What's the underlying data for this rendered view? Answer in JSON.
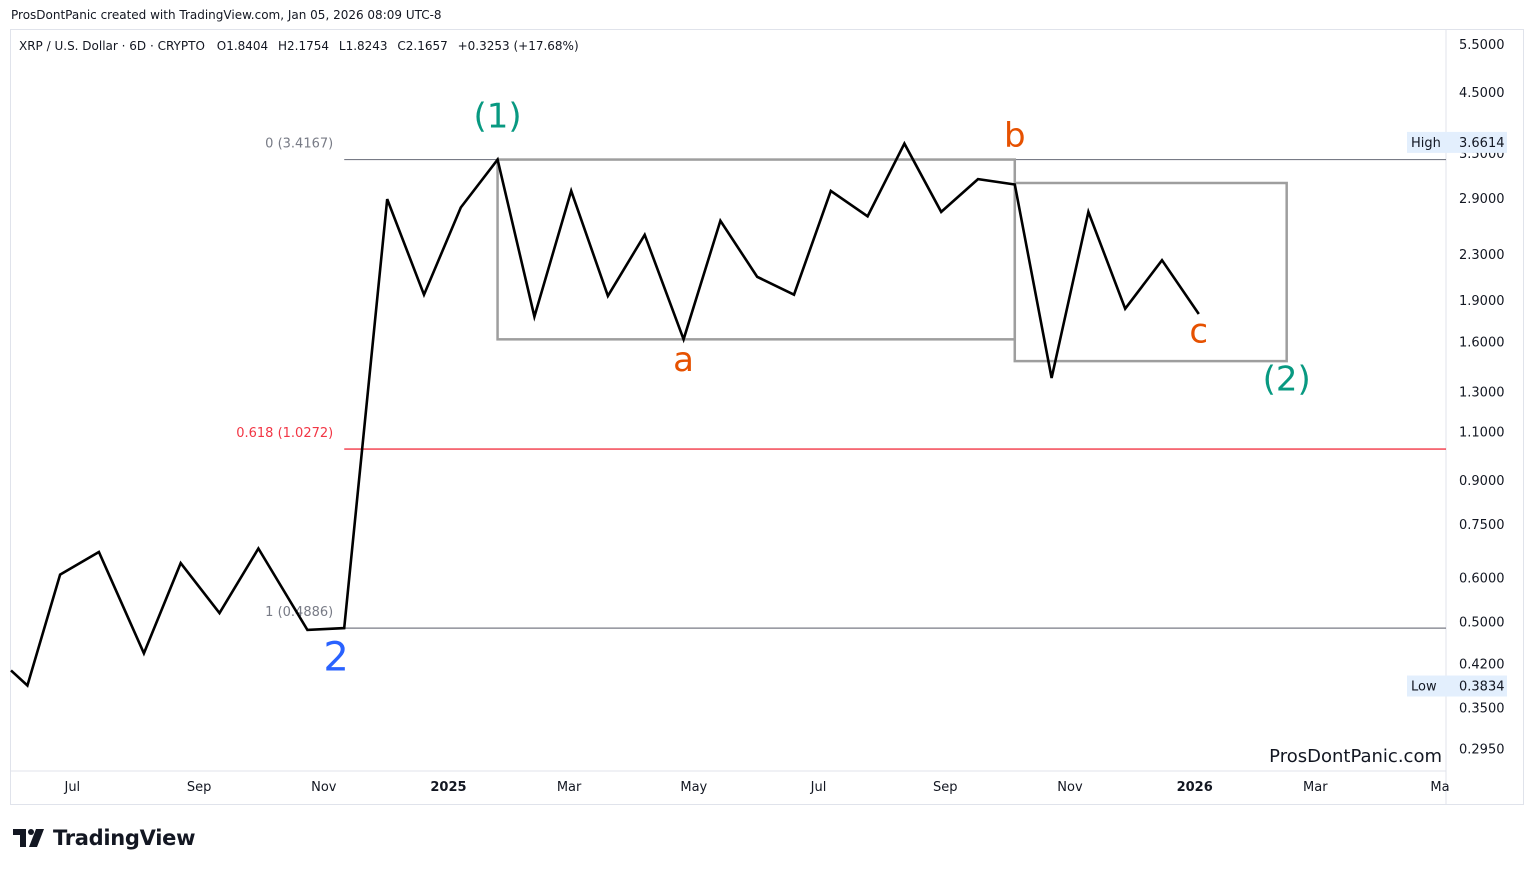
{
  "header": {
    "credit": "ProsDontPanic created with TradingView.com, Jan 05, 2026 08:09 UTC-8"
  },
  "legend": {
    "symbol": "XRP / U.S. Dollar · 6D · CRYPTO",
    "open_label": "O",
    "open": "1.8404",
    "high_label": "H",
    "high": "2.1754",
    "low_label": "L",
    "low": "1.8243",
    "close_label": "C",
    "close": "2.1657",
    "change": "+0.3253 (+17.68%)"
  },
  "watermark": "ProsDontPanic.com",
  "branding": {
    "logo_text": "TradingView"
  },
  "colors": {
    "price_line": "#000000",
    "fib_gray": "#787b86",
    "fib_red": "#f23645",
    "wave_green": "#089981",
    "wave_orange": "#e65100",
    "wave_blue": "#2962ff",
    "box_gray": "#9e9e9e"
  },
  "chart_data": {
    "type": "line",
    "title": "XRP / U.S. Dollar · 6D · CRYPTO",
    "y_scale": "log",
    "ylim": [
      0.27,
      5.85
    ],
    "y_ticks": [
      "5.5000",
      "4.5000",
      "3.5000",
      "2.9000",
      "2.3000",
      "1.9000",
      "1.6000",
      "1.3000",
      "1.1000",
      "0.9000",
      "0.7500",
      "0.6000",
      "0.5000",
      "0.4200",
      "0.3500",
      "0.2950"
    ],
    "x_ticks": [
      {
        "label": "Jul",
        "date": "2024-07-01",
        "bold": false
      },
      {
        "label": "Sep",
        "date": "2024-09-01",
        "bold": false
      },
      {
        "label": "Nov",
        "date": "2024-11-01",
        "bold": false
      },
      {
        "label": "2025",
        "date": "2025-01-01",
        "bold": true
      },
      {
        "label": "Mar",
        "date": "2025-03-01",
        "bold": false
      },
      {
        "label": "May",
        "date": "2025-05-01",
        "bold": false
      },
      {
        "label": "Jul",
        "date": "2025-07-01",
        "bold": false
      },
      {
        "label": "Sep",
        "date": "2025-09-01",
        "bold": false
      },
      {
        "label": "Nov",
        "date": "2025-11-01",
        "bold": false
      },
      {
        "label": "2026",
        "date": "2026-01-01",
        "bold": true
      },
      {
        "label": "Mar",
        "date": "2026-03-01",
        "bold": false
      },
      {
        "label": "Ma",
        "date": "2026-05-01",
        "bold": false
      }
    ],
    "series": [
      {
        "points": [
          {
            "x": "2024-06-01",
            "y": 0.41
          },
          {
            "x": "2024-06-09",
            "y": 0.385
          },
          {
            "x": "2024-06-25",
            "y": 0.61
          },
          {
            "x": "2024-07-14",
            "y": 0.67
          },
          {
            "x": "2024-08-05",
            "y": 0.44
          },
          {
            "x": "2024-08-23",
            "y": 0.64
          },
          {
            "x": "2024-09-11",
            "y": 0.52
          },
          {
            "x": "2024-09-30",
            "y": 0.68
          },
          {
            "x": "2024-10-24",
            "y": 0.485
          },
          {
            "x": "2024-11-11",
            "y": 0.4886
          },
          {
            "x": "2024-12-02",
            "y": 2.9
          },
          {
            "x": "2024-12-20",
            "y": 1.95
          },
          {
            "x": "2025-01-07",
            "y": 2.8
          },
          {
            "x": "2025-01-25",
            "y": 3.4167
          },
          {
            "x": "2025-02-12",
            "y": 1.78
          },
          {
            "x": "2025-03-02",
            "y": 3.0
          },
          {
            "x": "2025-03-20",
            "y": 1.94
          },
          {
            "x": "2025-04-07",
            "y": 2.5
          },
          {
            "x": "2025-04-26",
            "y": 1.62
          },
          {
            "x": "2025-05-14",
            "y": 2.65
          },
          {
            "x": "2025-06-01",
            "y": 2.1
          },
          {
            "x": "2025-06-19",
            "y": 1.95
          },
          {
            "x": "2025-07-07",
            "y": 3.0
          },
          {
            "x": "2025-07-25",
            "y": 2.7
          },
          {
            "x": "2025-08-12",
            "y": 3.65
          },
          {
            "x": "2025-08-30",
            "y": 2.75
          },
          {
            "x": "2025-09-17",
            "y": 3.15
          },
          {
            "x": "2025-10-05",
            "y": 3.08
          },
          {
            "x": "2025-10-23",
            "y": 1.38
          },
          {
            "x": "2025-11-10",
            "y": 2.75
          },
          {
            "x": "2025-11-28",
            "y": 1.84
          },
          {
            "x": "2025-12-16",
            "y": 2.25
          },
          {
            "x": "2026-01-03",
            "y": 1.8
          }
        ]
      }
    ],
    "fib_levels": [
      {
        "label": "0 (3.4167)",
        "value": 3.4167,
        "color": "#787b86",
        "x_start": "2024-11-11"
      },
      {
        "label": "0.618 (1.0272)",
        "value": 1.0272,
        "color": "#f23645",
        "x_start": "2024-11-11"
      },
      {
        "label": "1 (0.4886)",
        "value": 0.4886,
        "color": "#787b86",
        "x_start": "2024-11-11"
      }
    ],
    "boxes": [
      {
        "x0": "2025-01-25",
        "x1": "2025-10-05",
        "y0": 1.62,
        "y1": 3.4167
      },
      {
        "x0": "2025-10-05",
        "x1": "2026-02-15",
        "y0": 1.48,
        "y1": 3.1
      }
    ],
    "wave_labels": [
      {
        "text": "(1)",
        "x": "2025-01-25",
        "y": 3.9,
        "color": "#089981"
      },
      {
        "text": "a",
        "x": "2025-04-26",
        "y": 1.42,
        "color": "#e65100"
      },
      {
        "text": "b",
        "x": "2025-10-05",
        "y": 3.6,
        "color": "#e65100"
      },
      {
        "text": "c",
        "x": "2026-01-03",
        "y": 1.6,
        "color": "#e65100"
      },
      {
        "text": "(2)",
        "x": "2026-02-15",
        "y": 1.31,
        "color": "#089981"
      },
      {
        "text": "2",
        "x": "2024-11-07",
        "y": 0.41,
        "color": "#2962ff"
      }
    ],
    "price_tags": [
      {
        "label": "High",
        "value": "3.6614",
        "y": 3.6614
      },
      {
        "label": "Low",
        "value": "0.3834",
        "y": 0.3834
      }
    ],
    "grid": false
  }
}
